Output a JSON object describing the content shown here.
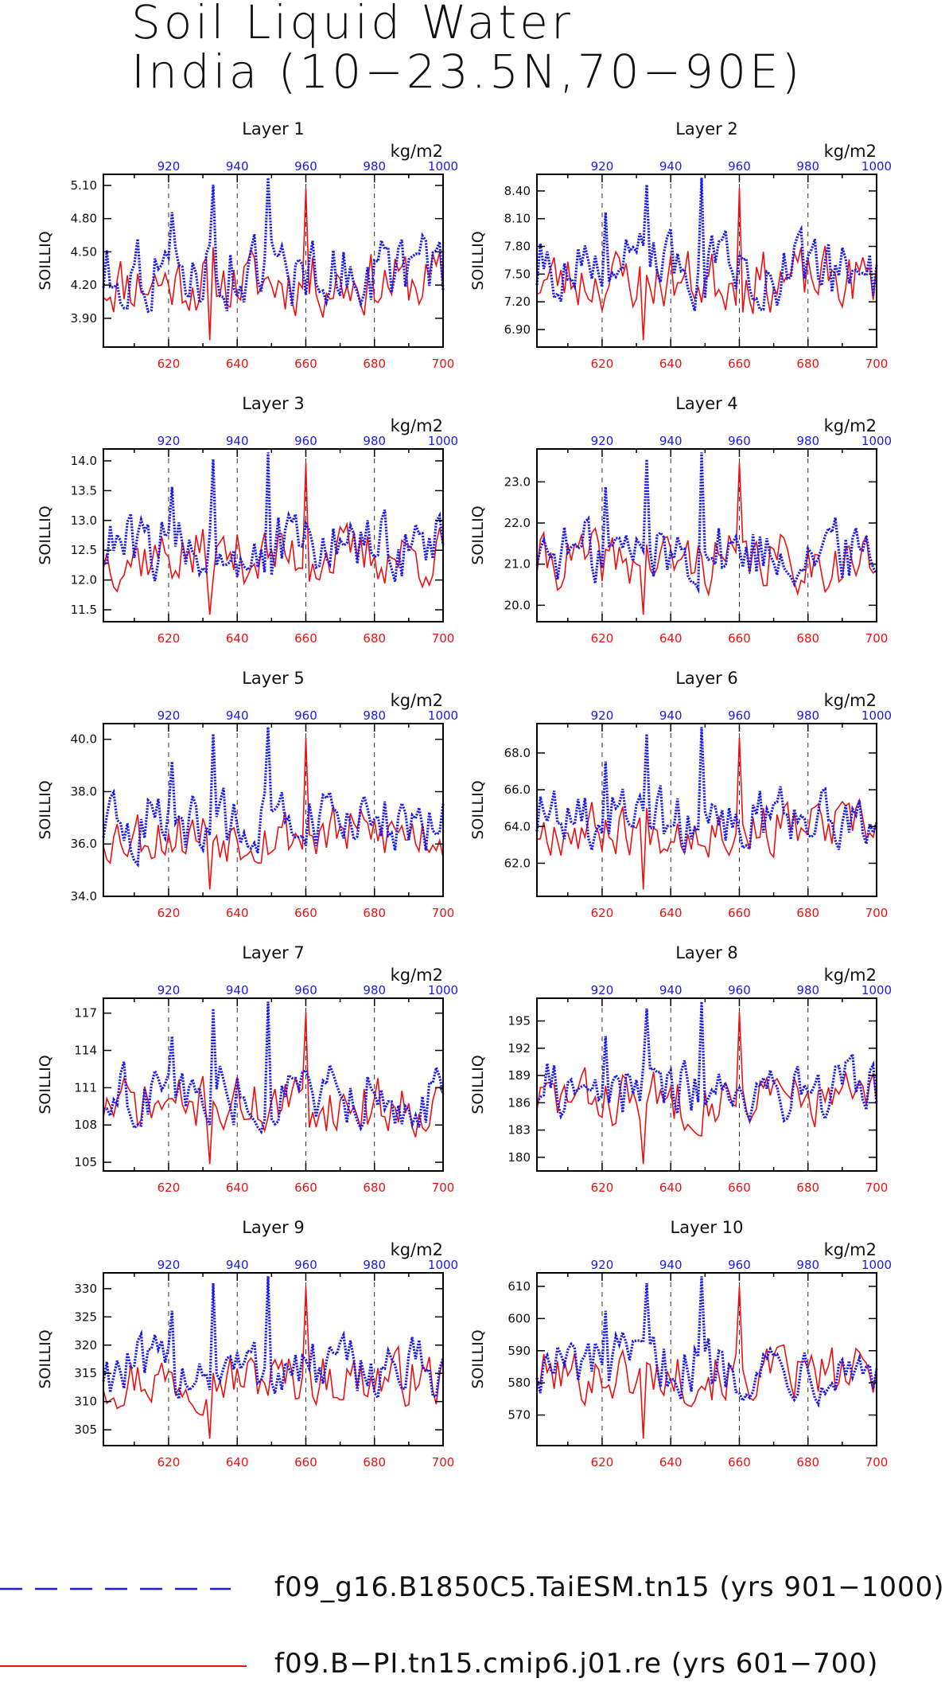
{
  "title": {
    "line1": "Soil Liquid Water",
    "line2": "India (10−23.5N,70−90E)"
  },
  "legend": {
    "blue_label": "f09_g16.B1850C5.TaiESM.tn15 (yrs 901−1000)",
    "red_label": "f09.B−PI.tn15.cmip6.j01.re (yrs 601−700)"
  },
  "colors": {
    "blue": "#1a1aee",
    "red": "#ee1111"
  },
  "chart_data": [
    {
      "type": "line",
      "title": "Layer 1",
      "ylabel": "SOILLIQ",
      "units": "kg/m2",
      "ylim": [
        3.64,
        5.2
      ],
      "yticks": [
        3.9,
        4.2,
        4.5,
        4.8,
        5.1
      ],
      "ydec": 2,
      "base": 4.28,
      "amp": 0.9,
      "seed": 11,
      "x_red_ticks": [
        620,
        640,
        660,
        680,
        700
      ],
      "x_blue_ticks": [
        920,
        940,
        960,
        980,
        1000
      ],
      "series": [
        {
          "name": "f09_g16.B1850C5.TaiESM.tn15",
          "x_range": [
            901,
            1000
          ]
        },
        {
          "name": "f09.B-PI.tn15.cmip6.j01.re",
          "x_range": [
            601,
            700
          ]
        }
      ]
    },
    {
      "type": "line",
      "title": "Layer 2",
      "ylabel": "SOILLIQ",
      "units": "kg/m2",
      "ylim": [
        6.71,
        8.58
      ],
      "yticks": [
        6.9,
        7.2,
        7.5,
        7.8,
        8.1,
        8.4
      ],
      "ydec": 2,
      "base": 7.5,
      "amp": 1.05,
      "seed": 23,
      "x_red_ticks": [
        620,
        640,
        660,
        680,
        700
      ],
      "x_blue_ticks": [
        920,
        940,
        960,
        980,
        1000
      ],
      "series": [
        {
          "name": "f09_g16.B1850C5.TaiESM.tn15",
          "x_range": [
            901,
            1000
          ]
        },
        {
          "name": "f09.B-PI.tn15.cmip6.j01.re",
          "x_range": [
            601,
            700
          ]
        }
      ]
    },
    {
      "type": "line",
      "title": "Layer 3",
      "ylabel": "SOILLIQ",
      "units": "kg/m2",
      "ylim": [
        11.3,
        14.2
      ],
      "yticks": [
        11.5,
        12.0,
        12.5,
        13.0,
        13.5,
        14.0
      ],
      "ydec": 1,
      "base": 12.5,
      "amp": 1.55,
      "seed": 37,
      "x_red_ticks": [
        620,
        640,
        660,
        680,
        700
      ],
      "x_blue_ticks": [
        920,
        940,
        960,
        980,
        1000
      ],
      "series": [
        {
          "name": "f09_g16.B1850C5.TaiESM.tn15",
          "x_range": [
            901,
            1000
          ]
        },
        {
          "name": "f09.B-PI.tn15.cmip6.j01.re",
          "x_range": [
            601,
            700
          ]
        }
      ]
    },
    {
      "type": "line",
      "title": "Layer 4",
      "ylabel": "SOILLIQ",
      "units": "kg/m2",
      "ylim": [
        19.6,
        23.8
      ],
      "yticks": [
        20.0,
        21.0,
        22.0,
        23.0
      ],
      "ydec": 1,
      "base": 21.2,
      "amp": 2.2,
      "seed": 41,
      "x_red_ticks": [
        620,
        640,
        660,
        680,
        700
      ],
      "x_blue_ticks": [
        920,
        940,
        960,
        980,
        1000
      ],
      "series": [
        {
          "name": "f09_g16.B1850C5.TaiESM.tn15",
          "x_range": [
            901,
            1000
          ]
        },
        {
          "name": "f09.B-PI.tn15.cmip6.j01.re",
          "x_range": [
            601,
            700
          ]
        }
      ]
    },
    {
      "type": "line",
      "title": "Layer 5",
      "ylabel": "SOILLIQ",
      "units": "kg/m2",
      "ylim": [
        34.0,
        40.6
      ],
      "yticks": [
        34.0,
        36.0,
        38.0,
        40.0
      ],
      "ydec": 1,
      "base": 36.6,
      "amp": 3.4,
      "seed": 53,
      "x_red_ticks": [
        620,
        640,
        660,
        680,
        700
      ],
      "x_blue_ticks": [
        920,
        940,
        960,
        980,
        1000
      ],
      "series": [
        {
          "name": "f09_g16.B1850C5.TaiESM.tn15",
          "x_range": [
            901,
            1000
          ]
        },
        {
          "name": "f09.B-PI.tn15.cmip6.j01.re",
          "x_range": [
            601,
            700
          ]
        }
      ]
    },
    {
      "type": "line",
      "title": "Layer 6",
      "ylabel": "SOILLIQ",
      "units": "kg/m2",
      "ylim": [
        60.2,
        69.6
      ],
      "yticks": [
        62.0,
        64.0,
        66.0,
        68.0
      ],
      "ydec": 1,
      "base": 64.2,
      "amp": 4.5,
      "seed": 67,
      "x_red_ticks": [
        620,
        640,
        660,
        680,
        700
      ],
      "x_blue_ticks": [
        920,
        940,
        960,
        980,
        1000
      ],
      "series": [
        {
          "name": "f09_g16.B1850C5.TaiESM.tn15",
          "x_range": [
            901,
            1000
          ]
        },
        {
          "name": "f09.B-PI.tn15.cmip6.j01.re",
          "x_range": [
            601,
            700
          ]
        }
      ]
    },
    {
      "type": "line",
      "title": "Layer 7",
      "ylabel": "SOILLIQ",
      "units": "kg/m2",
      "ylim": [
        104.3,
        118.2
      ],
      "yticks": [
        105,
        108,
        111,
        114,
        117
      ],
      "ydec": 0,
      "base": 110,
      "amp": 7,
      "seed": 71,
      "x_red_ticks": [
        620,
        640,
        660,
        680,
        700
      ],
      "x_blue_ticks": [
        920,
        940,
        960,
        980,
        1000
      ],
      "series": [
        {
          "name": "f09_g16.B1850C5.TaiESM.tn15",
          "x_range": [
            901,
            1000
          ]
        },
        {
          "name": "f09.B-PI.tn15.cmip6.j01.re",
          "x_range": [
            601,
            700
          ]
        }
      ]
    },
    {
      "type": "line",
      "title": "Layer 8",
      "ylabel": "SOILLIQ",
      "units": "kg/m2",
      "ylim": [
        178.5,
        197.5
      ],
      "yticks": [
        180,
        183,
        186,
        189,
        192,
        195
      ],
      "ydec": 0,
      "base": 187,
      "amp": 9.5,
      "seed": 83,
      "x_red_ticks": [
        620,
        640,
        660,
        680,
        700
      ],
      "x_blue_ticks": [
        920,
        940,
        960,
        980,
        1000
      ],
      "series": [
        {
          "name": "f09_g16.B1850C5.TaiESM.tn15",
          "x_range": [
            901,
            1000
          ]
        },
        {
          "name": "f09.B-PI.tn15.cmip6.j01.re",
          "x_range": [
            601,
            700
          ]
        }
      ]
    },
    {
      "type": "line",
      "title": "Layer 9",
      "ylabel": "SOILLIQ",
      "units": "kg/m2",
      "ylim": [
        302.2,
        332.8
      ],
      "yticks": [
        305,
        310,
        315,
        320,
        325,
        330
      ],
      "ydec": 0,
      "base": 315,
      "amp": 15,
      "seed": 97,
      "x_red_ticks": [
        620,
        640,
        660,
        680,
        700
      ],
      "x_blue_ticks": [
        920,
        940,
        960,
        980,
        1000
      ],
      "series": [
        {
          "name": "f09_g16.B1850C5.TaiESM.tn15",
          "x_range": [
            901,
            1000
          ]
        },
        {
          "name": "f09.B-PI.tn15.cmip6.j01.re",
          "x_range": [
            601,
            700
          ]
        }
      ]
    },
    {
      "type": "line",
      "title": "Layer 10",
      "ylabel": "SOILLIQ",
      "units": "kg/m2",
      "ylim": [
        560.5,
        614.2
      ],
      "yticks": [
        570,
        580,
        590,
        600,
        610
      ],
      "ydec": 0,
      "base": 584,
      "amp": 26,
      "seed": 101,
      "x_red_ticks": [
        620,
        640,
        660,
        680,
        700
      ],
      "x_blue_ticks": [
        920,
        940,
        960,
        980,
        1000
      ],
      "series": [
        {
          "name": "f09_g16.B1850C5.TaiESM.tn15",
          "x_range": [
            901,
            1000
          ]
        },
        {
          "name": "f09.B-PI.tn15.cmip6.j01.re",
          "x_range": [
            601,
            700
          ]
        }
      ]
    }
  ]
}
